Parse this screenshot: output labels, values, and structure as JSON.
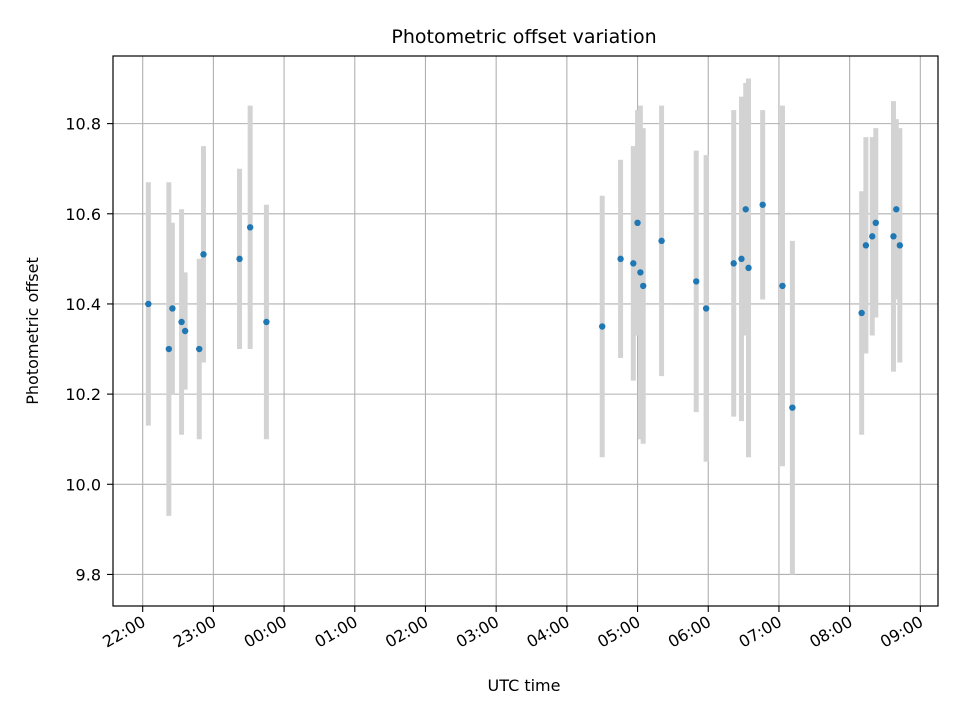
{
  "chart_data": {
    "type": "scatter",
    "title": "Photometric offset variation",
    "xlabel": "UTC time",
    "ylabel": "Photometric offset",
    "x_start": "21:35",
    "xlim_hours": [
      21.58,
      33.25
    ],
    "ylim": [
      9.73,
      10.95
    ],
    "grid": true,
    "marker_color": "#1f77b4",
    "errorbar_color": "#d3d3d3",
    "x_ticks": [
      {
        "hour": 22,
        "label": "22:00"
      },
      {
        "hour": 23,
        "label": "23:00"
      },
      {
        "hour": 24,
        "label": "00:00"
      },
      {
        "hour": 25,
        "label": "01:00"
      },
      {
        "hour": 26,
        "label": "02:00"
      },
      {
        "hour": 27,
        "label": "03:00"
      },
      {
        "hour": 28,
        "label": "04:00"
      },
      {
        "hour": 29,
        "label": "05:00"
      },
      {
        "hour": 30,
        "label": "06:00"
      },
      {
        "hour": 31,
        "label": "07:00"
      },
      {
        "hour": 32,
        "label": "08:00"
      },
      {
        "hour": 33,
        "label": "09:00"
      }
    ],
    "y_ticks": [
      {
        "value": 9.8,
        "label": "9.8"
      },
      {
        "value": 10.0,
        "label": "10.0"
      },
      {
        "value": 10.2,
        "label": "10.2"
      },
      {
        "value": 10.4,
        "label": "10.4"
      },
      {
        "value": 10.6,
        "label": "10.6"
      },
      {
        "value": 10.8,
        "label": "10.8"
      }
    ],
    "points": [
      {
        "t": 22.08,
        "y": 10.4,
        "err": 0.27
      },
      {
        "t": 22.37,
        "y": 10.3,
        "err": 0.37
      },
      {
        "t": 22.42,
        "y": 10.39,
        "err": 0.19
      },
      {
        "t": 22.55,
        "y": 10.36,
        "err": 0.25
      },
      {
        "t": 22.6,
        "y": 10.34,
        "err": 0.13
      },
      {
        "t": 22.8,
        "y": 10.3,
        "err": 0.2
      },
      {
        "t": 22.86,
        "y": 10.51,
        "err": 0.24
      },
      {
        "t": 23.37,
        "y": 10.5,
        "err": 0.2
      },
      {
        "t": 23.52,
        "y": 10.57,
        "err": 0.27
      },
      {
        "t": 23.75,
        "y": 10.36,
        "err": 0.26
      },
      {
        "t": 28.5,
        "y": 10.35,
        "err": 0.29
      },
      {
        "t": 28.76,
        "y": 10.5,
        "err": 0.22
      },
      {
        "t": 28.94,
        "y": 10.49,
        "err": 0.26
      },
      {
        "t": 29.0,
        "y": 10.58,
        "err": 0.25
      },
      {
        "t": 29.04,
        "y": 10.47,
        "err": 0.37
      },
      {
        "t": 29.08,
        "y": 10.44,
        "err": 0.35
      },
      {
        "t": 29.34,
        "y": 10.54,
        "err": 0.3
      },
      {
        "t": 29.83,
        "y": 10.45,
        "err": 0.29
      },
      {
        "t": 29.97,
        "y": 10.39,
        "err": 0.34
      },
      {
        "t": 30.36,
        "y": 10.49,
        "err": 0.34
      },
      {
        "t": 30.47,
        "y": 10.5,
        "err": 0.36
      },
      {
        "t": 30.53,
        "y": 10.61,
        "err": 0.28
      },
      {
        "t": 30.57,
        "y": 10.48,
        "err": 0.42
      },
      {
        "t": 30.77,
        "y": 10.62,
        "err": 0.21
      },
      {
        "t": 31.05,
        "y": 10.44,
        "err": 0.4
      },
      {
        "t": 31.19,
        "y": 10.17,
        "err": 0.37
      },
      {
        "t": 32.17,
        "y": 10.38,
        "err": 0.27
      },
      {
        "t": 32.23,
        "y": 10.53,
        "err": 0.24
      },
      {
        "t": 32.32,
        "y": 10.55,
        "err": 0.22
      },
      {
        "t": 32.37,
        "y": 10.58,
        "err": 0.21
      },
      {
        "t": 32.62,
        "y": 10.55,
        "err": 0.3
      },
      {
        "t": 32.66,
        "y": 10.61,
        "err": 0.2
      },
      {
        "t": 32.71,
        "y": 10.53,
        "err": 0.26
      }
    ]
  }
}
